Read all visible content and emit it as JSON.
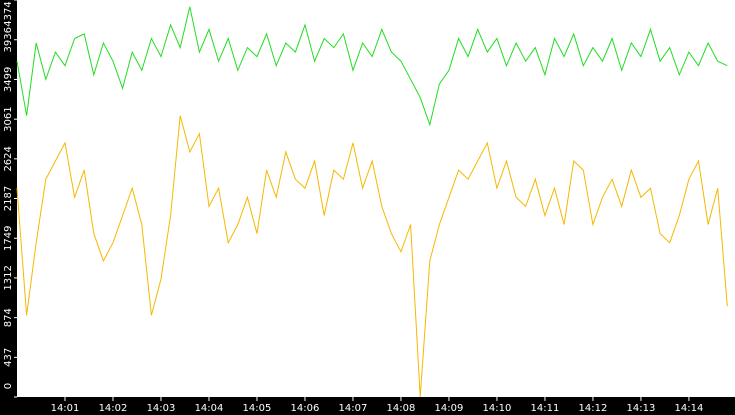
{
  "chart_data": {
    "type": "line",
    "x": [
      0,
      0.2,
      0.4,
      0.6,
      0.8,
      1,
      1.2,
      1.4,
      1.6,
      1.8,
      2,
      2.2,
      2.4,
      2.6,
      2.8,
      3,
      3.2,
      3.4,
      3.6,
      3.8,
      4,
      4.2,
      4.4,
      4.6,
      4.8,
      5,
      5.2,
      5.4,
      5.6,
      5.8,
      6,
      6.2,
      6.4,
      6.6,
      6.8,
      7,
      7.2,
      7.4,
      7.6,
      7.8,
      8,
      8.2,
      8.4,
      8.6,
      8.8,
      9,
      9.2,
      9.4,
      9.6,
      9.8,
      10,
      10.2,
      10.4,
      10.6,
      10.8,
      11,
      11.2,
      11.4,
      11.6,
      11.8,
      12,
      12.2,
      12.4,
      12.6,
      12.8,
      13,
      13.2,
      13.4,
      13.6,
      13.8,
      14,
      14.2,
      14.4,
      14.6,
      14.8
    ],
    "series": [
      {
        "color": "#22dd22",
        "values": [
          3700,
          3100,
          3900,
          3500,
          3800,
          3650,
          3950,
          4000,
          3550,
          3900,
          3700,
          3400,
          3800,
          3600,
          3950,
          3750,
          4100,
          3850,
          4300,
          3800,
          4050,
          3700,
          3950,
          3600,
          3850,
          3750,
          4000,
          3650,
          3900,
          3800,
          4100,
          3700,
          3950,
          3850,
          4000,
          3600,
          3900,
          3750,
          4050,
          3800,
          3700,
          3500,
          3300,
          3000,
          3450,
          3600,
          3950,
          3750,
          4050,
          3800,
          3950,
          3650,
          3900,
          3700,
          3850,
          3550,
          3950,
          3750,
          4000,
          3650,
          3850,
          3700,
          3950,
          3600,
          3900,
          3750,
          4050,
          3700,
          3850,
          3550,
          3800,
          3650,
          3900,
          3700,
          3650
        ]
      },
      {
        "color": "#f5b800",
        "values": [
          2300,
          900,
          1700,
          2400,
          2600,
          2800,
          2200,
          2500,
          1800,
          1500,
          1700,
          2000,
          2300,
          1900,
          900,
          1300,
          2000,
          3100,
          2700,
          2900,
          2100,
          2300,
          1700,
          1900,
          2200,
          1800,
          2500,
          2200,
          2700,
          2400,
          2300,
          2600,
          2000,
          2500,
          2400,
          2800,
          2300,
          2600,
          2100,
          1800,
          1600,
          1900,
          0,
          1500,
          1900,
          2200,
          2500,
          2400,
          2600,
          2800,
          2300,
          2600,
          2200,
          2100,
          2400,
          2000,
          2300,
          1900,
          2600,
          2500,
          1900,
          2200,
          2400,
          2100,
          2500,
          2200,
          2300,
          1800,
          1700,
          2000,
          2400,
          2600,
          1900,
          2300,
          1000
        ]
      }
    ],
    "xlim": [
      0,
      14.96
    ],
    "xticks": [
      {
        "value": 1,
        "label": "14:01"
      },
      {
        "value": 2,
        "label": "14:02"
      },
      {
        "value": 3,
        "label": "14:03"
      },
      {
        "value": 4,
        "label": "14:04"
      },
      {
        "value": 5,
        "label": "14:05"
      },
      {
        "value": 6,
        "label": "14:06"
      },
      {
        "value": 7,
        "label": "14:07"
      },
      {
        "value": 8,
        "label": "14:08"
      },
      {
        "value": 9,
        "label": "14:09"
      },
      {
        "value": 10,
        "label": "14:10"
      },
      {
        "value": 11,
        "label": "14:11"
      },
      {
        "value": 12,
        "label": "14:12"
      },
      {
        "value": 13,
        "label": "14:13"
      },
      {
        "value": 14,
        "label": "14:14"
      }
    ],
    "ylim": [
      0,
      4374
    ],
    "yticks": [
      0,
      437,
      874,
      1312,
      1749,
      2187,
      2624,
      3061,
      3499,
      3936,
      4374
    ]
  }
}
